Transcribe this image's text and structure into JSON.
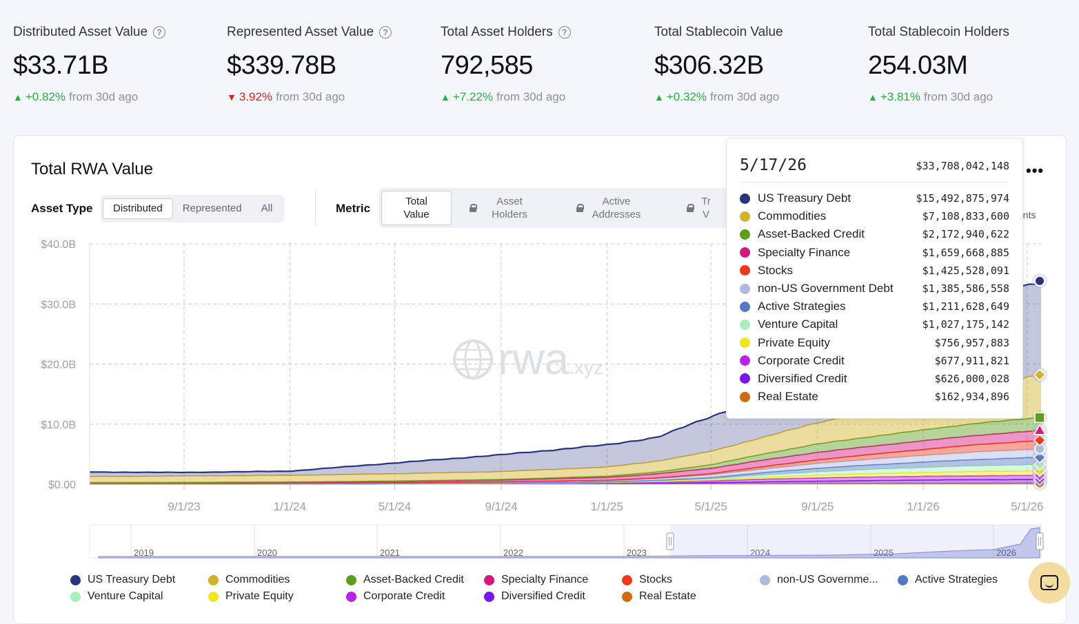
{
  "stats": [
    {
      "label": "Distributed Asset Value",
      "help": true,
      "value": "$33.71B",
      "dir": "up",
      "change": "+0.82%",
      "suffix": "from 30d ago"
    },
    {
      "label": "Represented Asset Value",
      "help": true,
      "value": "$339.78B",
      "dir": "down",
      "change": "3.92%",
      "suffix": "from 30d ago"
    },
    {
      "label": "Total Asset Holders",
      "help": true,
      "value": "792,585",
      "dir": "up",
      "change": "+7.22%",
      "suffix": "from 30d ago"
    },
    {
      "label": "Total Stablecoin Value",
      "help": false,
      "value": "$306.32B",
      "dir": "up",
      "change": "+0.32%",
      "suffix": "from 30d ago"
    },
    {
      "label": "Total Stablecoin Holders",
      "help": false,
      "value": "254.03M",
      "dir": "up",
      "change": "+3.81%",
      "suffix": "from 30d ago"
    }
  ],
  "card": {
    "title": "Total RWA Value",
    "asset_type_label": "Asset Type",
    "asset_type_options": [
      "Distributed",
      "Represented",
      "All"
    ],
    "asset_type_selected": "Distributed",
    "metric_label": "Metric",
    "metric_options": [
      {
        "label": "Total Value",
        "locked": false
      },
      {
        "label": "Asset Holders",
        "locked": true
      },
      {
        "label": "Active Addresses",
        "locked": true
      },
      {
        "label": "Tr V",
        "locked": true
      }
    ],
    "metric_tail": "alents"
  },
  "tooltip": {
    "date": "5/17/26",
    "total": "$33,708,042,148",
    "rows": [
      {
        "name": "US Treasury Debt",
        "value": "$15,492,875,974",
        "color": "#2a347c"
      },
      {
        "name": "Commodities",
        "value": "$7,108,833,600",
        "color": "#d4b12a"
      },
      {
        "name": "Asset-Backed Credit",
        "value": "$2,172,940,622",
        "color": "#5e9e1c"
      },
      {
        "name": "Specialty Finance",
        "value": "$1,659,668,885",
        "color": "#d4177b"
      },
      {
        "name": "Stocks",
        "value": "$1,425,528,091",
        "color": "#f1391a"
      },
      {
        "name": "non-US Government Debt",
        "value": "$1,385,586,558",
        "color": "#aeb9e0"
      },
      {
        "name": "Active Strategies",
        "value": "$1,211,628,649",
        "color": "#5578c6"
      },
      {
        "name": "Venture Capital",
        "value": "$1,027,175,142",
        "color": "#a8efb9"
      },
      {
        "name": "Private Equity",
        "value": "$756,957,883",
        "color": "#f2e51e"
      },
      {
        "name": "Corporate Credit",
        "value": "$677,911,821",
        "color": "#b724e8"
      },
      {
        "name": "Diversified Credit",
        "value": "$626,000,028",
        "color": "#7a16f0"
      },
      {
        "name": "Real Estate",
        "value": "$162,934,896",
        "color": "#d06a12"
      }
    ]
  },
  "legend": [
    {
      "name": "US Treasury Debt",
      "color": "#2a347c"
    },
    {
      "name": "Commodities",
      "color": "#d4b12a"
    },
    {
      "name": "Asset-Backed Credit",
      "color": "#5e9e1c"
    },
    {
      "name": "Specialty Finance",
      "color": "#d4177b"
    },
    {
      "name": "Stocks",
      "color": "#f1391a"
    },
    {
      "name": "non-US Governme...",
      "color": "#aeb9e0"
    },
    {
      "name": "Active Strategies",
      "color": "#5578c6"
    },
    {
      "name": "Venture Capital",
      "color": "#a8efb9"
    },
    {
      "name": "Private Equity",
      "color": "#f2e51e"
    },
    {
      "name": "Corporate Credit",
      "color": "#b724e8"
    },
    {
      "name": "Diversified Credit",
      "color": "#7a16f0"
    },
    {
      "name": "Real Estate",
      "color": "#d06a12"
    }
  ],
  "watermark": "rwa.xyz",
  "chart_data": {
    "type": "area",
    "stacked": true,
    "title": "Total RWA Value",
    "ylim": [
      0,
      40
    ],
    "y_tick_labels": [
      "$0.00",
      "$10.0B",
      "$20.0B",
      "$30.0B",
      "$40.0B"
    ],
    "y_ticks": [
      0,
      10,
      20,
      30,
      40
    ],
    "x_tick_labels": [
      "9/1/23",
      "1/1/24",
      "5/1/24",
      "9/1/24",
      "1/1/25",
      "5/1/25",
      "9/1/25",
      "1/1/26",
      "5/1/26"
    ],
    "x_ticks": [
      "2023-09-01",
      "2024-01-01",
      "2024-05-01",
      "2024-09-01",
      "2025-01-01",
      "2025-05-01",
      "2025-09-01",
      "2026-01-01",
      "2026-05-01"
    ],
    "x_range": [
      "2023-05-15",
      "2026-05-17"
    ],
    "grid": true,
    "legend_placement": "bottom",
    "unit": "$B",
    "x": [
      "2023-05-15",
      "2023-09-01",
      "2024-01-01",
      "2024-05-01",
      "2024-09-01",
      "2025-01-01",
      "2025-03-01",
      "2025-05-01",
      "2025-07-01",
      "2025-09-01",
      "2025-11-01",
      "2026-01-01",
      "2026-03-01",
      "2026-05-17"
    ],
    "series": [
      {
        "name": "Real Estate",
        "color": "#d06a12",
        "values": [
          0.02,
          0.02,
          0.02,
          0.03,
          0.04,
          0.05,
          0.06,
          0.07,
          0.08,
          0.1,
          0.12,
          0.14,
          0.15,
          0.16
        ]
      },
      {
        "name": "Diversified Credit",
        "color": "#7a16f0",
        "values": [
          0.0,
          0.0,
          0.0,
          0.0,
          0.02,
          0.05,
          0.1,
          0.18,
          0.3,
          0.4,
          0.48,
          0.55,
          0.6,
          0.63
        ]
      },
      {
        "name": "Corporate Credit",
        "color": "#b724e8",
        "values": [
          0.05,
          0.05,
          0.06,
          0.08,
          0.1,
          0.15,
          0.2,
          0.3,
          0.45,
          0.55,
          0.6,
          0.62,
          0.65,
          0.68
        ]
      },
      {
        "name": "Private Equity",
        "color": "#f2e51e",
        "values": [
          0.0,
          0.0,
          0.0,
          0.01,
          0.02,
          0.04,
          0.08,
          0.15,
          0.3,
          0.45,
          0.55,
          0.62,
          0.7,
          0.76
        ]
      },
      {
        "name": "Venture Capital",
        "color": "#a8efb9",
        "values": [
          0.0,
          0.0,
          0.0,
          0.01,
          0.02,
          0.05,
          0.1,
          0.2,
          0.4,
          0.55,
          0.7,
          0.85,
          0.95,
          1.03
        ]
      },
      {
        "name": "Active Strategies",
        "color": "#5578c6",
        "values": [
          0.0,
          0.0,
          0.0,
          0.01,
          0.02,
          0.05,
          0.1,
          0.2,
          0.4,
          0.6,
          0.75,
          0.9,
          1.05,
          1.21
        ]
      },
      {
        "name": "non-US Government Debt",
        "color": "#aeb9e0",
        "values": [
          0.05,
          0.06,
          0.08,
          0.1,
          0.15,
          0.2,
          0.3,
          0.45,
          0.6,
          0.8,
          0.95,
          1.1,
          1.25,
          1.39
        ]
      },
      {
        "name": "Stocks",
        "color": "#f1391a",
        "values": [
          0.0,
          0.0,
          0.0,
          0.01,
          0.02,
          0.05,
          0.1,
          0.2,
          0.4,
          0.6,
          0.8,
          1.0,
          1.2,
          1.43
        ]
      },
      {
        "name": "Specialty Finance",
        "color": "#d4177b",
        "values": [
          0.1,
          0.12,
          0.15,
          0.2,
          0.3,
          0.5,
          0.7,
          0.9,
          1.1,
          1.25,
          1.35,
          1.45,
          1.55,
          1.66
        ]
      },
      {
        "name": "Asset-Backed Credit",
        "color": "#5e9e1c",
        "values": [
          0.05,
          0.05,
          0.06,
          0.08,
          0.1,
          0.2,
          0.3,
          0.6,
          1.0,
          1.4,
          1.6,
          1.8,
          2.0,
          2.17
        ]
      },
      {
        "name": "Commodities",
        "color": "#d4b12a",
        "values": [
          1.0,
          1.05,
          1.1,
          1.2,
          1.3,
          1.5,
          1.8,
          2.2,
          2.8,
          3.5,
          4.3,
          5.0,
          6.0,
          7.11
        ]
      },
      {
        "name": "US Treasury Debt",
        "color": "#2a347c",
        "values": [
          0.75,
          0.6,
          0.7,
          1.8,
          2.8,
          3.7,
          4.0,
          5.8,
          6.8,
          8.0,
          9.8,
          11.5,
          13.5,
          15.49
        ]
      }
    ]
  }
}
